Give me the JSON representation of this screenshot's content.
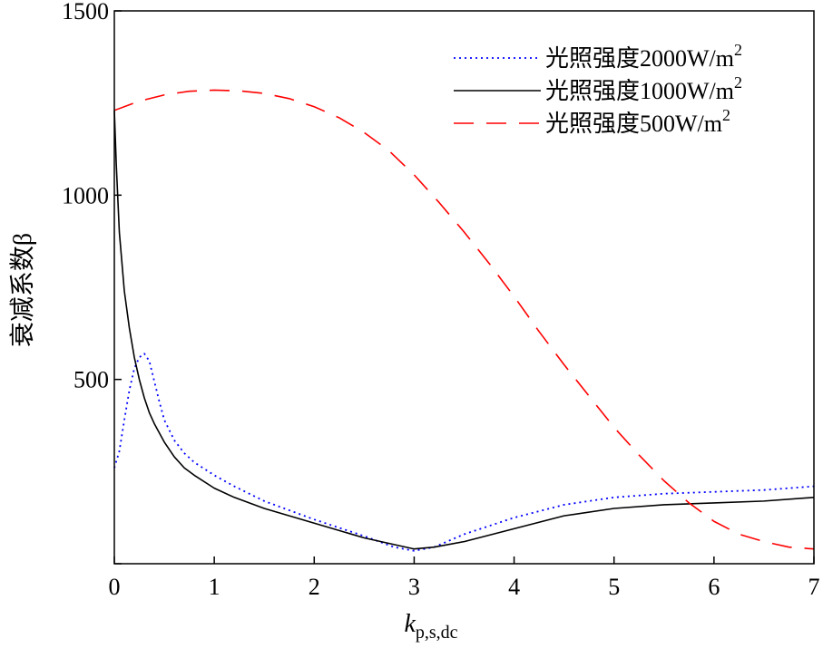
{
  "chart_data": {
    "type": "line",
    "title": "",
    "ylabel": "衰减系数β",
    "xlabel": {
      "main": "k",
      "subscript": "p,s,dc"
    },
    "xlim": [
      0,
      7
    ],
    "ylim": [
      0,
      1500
    ],
    "xticks": [
      0,
      1,
      2,
      3,
      4,
      5,
      6,
      7
    ],
    "yticks": [
      0,
      500,
      1000,
      1500
    ],
    "ytick_labels": [
      "500",
      "1000",
      "1500"
    ],
    "grid": false,
    "legend_position": "top-right",
    "series": [
      {
        "name": "光照强度2000W/m²",
        "label_main": "光照强度2000W/m",
        "label_sup": "2",
        "color": "#0000ff",
        "style": "dotted",
        "x": [
          0.0,
          0.05,
          0.1,
          0.15,
          0.2,
          0.25,
          0.3,
          0.35,
          0.4,
          0.45,
          0.5,
          0.6,
          0.7,
          0.8,
          1.0,
          1.2,
          1.5,
          2.0,
          2.5,
          2.8,
          3.0,
          3.2,
          3.5,
          4.0,
          4.5,
          5.0,
          5.5,
          6.0,
          6.5,
          7.0
        ],
        "y": [
          260,
          305,
          390,
          470,
          530,
          560,
          570,
          550,
          495,
          440,
          390,
          335,
          300,
          275,
          240,
          210,
          170,
          120,
          75,
          45,
          35,
          45,
          80,
          125,
          160,
          180,
          190,
          195,
          200,
          210
        ]
      },
      {
        "name": "光照强度1000W/m²",
        "label_main": "光照强度1000W/m",
        "label_sup": "2",
        "color": "#000000",
        "style": "solid",
        "x": [
          0.0,
          0.02,
          0.05,
          0.1,
          0.15,
          0.2,
          0.25,
          0.3,
          0.35,
          0.4,
          0.5,
          0.6,
          0.7,
          0.8,
          1.0,
          1.2,
          1.5,
          2.0,
          2.5,
          3.0,
          3.2,
          3.5,
          4.0,
          4.5,
          5.0,
          5.5,
          6.0,
          6.5,
          7.0
        ],
        "y": [
          1230,
          1080,
          900,
          740,
          640,
          560,
          500,
          450,
          410,
          380,
          330,
          290,
          260,
          240,
          205,
          180,
          150,
          110,
          70,
          40,
          45,
          60,
          95,
          130,
          150,
          160,
          165,
          170,
          180
        ]
      },
      {
        "name": "光照强度500W/m²",
        "label_main": "光照强度500W/m",
        "label_sup": "2",
        "color": "#ff0000",
        "style": "dashed",
        "x": [
          0.0,
          0.25,
          0.5,
          0.75,
          1.0,
          1.25,
          1.5,
          1.75,
          2.0,
          2.25,
          2.5,
          2.75,
          3.0,
          3.25,
          3.5,
          3.75,
          4.0,
          4.25,
          4.5,
          4.75,
          5.0,
          5.25,
          5.5,
          5.75,
          6.0,
          6.25,
          6.5,
          6.75,
          7.0
        ],
        "y": [
          1230,
          1255,
          1272,
          1282,
          1285,
          1283,
          1276,
          1262,
          1240,
          1210,
          1170,
          1120,
          1055,
          980,
          900,
          815,
          725,
          630,
          540,
          455,
          370,
          295,
          225,
          165,
          115,
          80,
          60,
          45,
          40
        ]
      }
    ]
  }
}
